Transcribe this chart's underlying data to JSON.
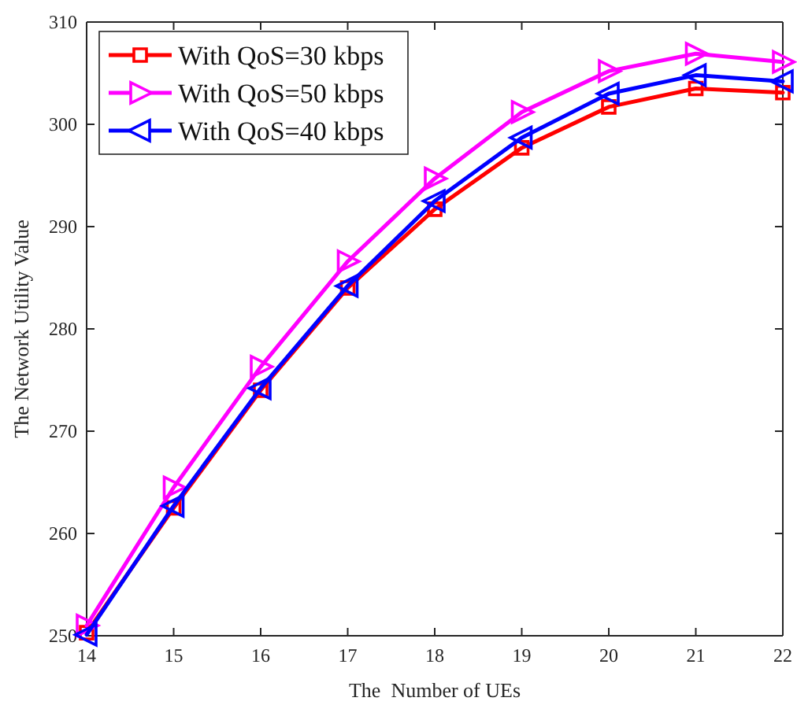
{
  "chart_data": {
    "type": "line",
    "xlabel": "The  Number of UEs",
    "ylabel": "The Network Utility Value",
    "x": [
      14,
      15,
      16,
      17,
      18,
      19,
      20,
      21,
      22
    ],
    "xlim": [
      14,
      22
    ],
    "xticks": [
      14,
      15,
      16,
      17,
      18,
      19,
      20,
      21,
      22
    ],
    "ylim": [
      250,
      310
    ],
    "yticks": [
      250,
      260,
      270,
      280,
      290,
      300,
      310
    ],
    "grid": false,
    "legend": "top left",
    "line_style": "solid",
    "series": [
      {
        "name": "With QoS=30 kbps",
        "color": "#ff0000",
        "marker": "square",
        "values": [
          250.3,
          262.5,
          274,
          284,
          291.7,
          297.7,
          301.7,
          303.5,
          303.1
        ]
      },
      {
        "name": "With QoS=50 kbps",
        "color": "#ff00ff",
        "marker": "triangle-right",
        "values": [
          251,
          264.5,
          276.3,
          286.6,
          294.7,
          301.2,
          305.2,
          306.9,
          306.1
        ]
      },
      {
        "name": "With QoS=40 kbps",
        "color": "#0000ff",
        "marker": "triangle-left",
        "values": [
          250.1,
          262.7,
          274.2,
          284.2,
          292.5,
          298.7,
          303,
          304.8,
          304.2
        ]
      }
    ]
  }
}
